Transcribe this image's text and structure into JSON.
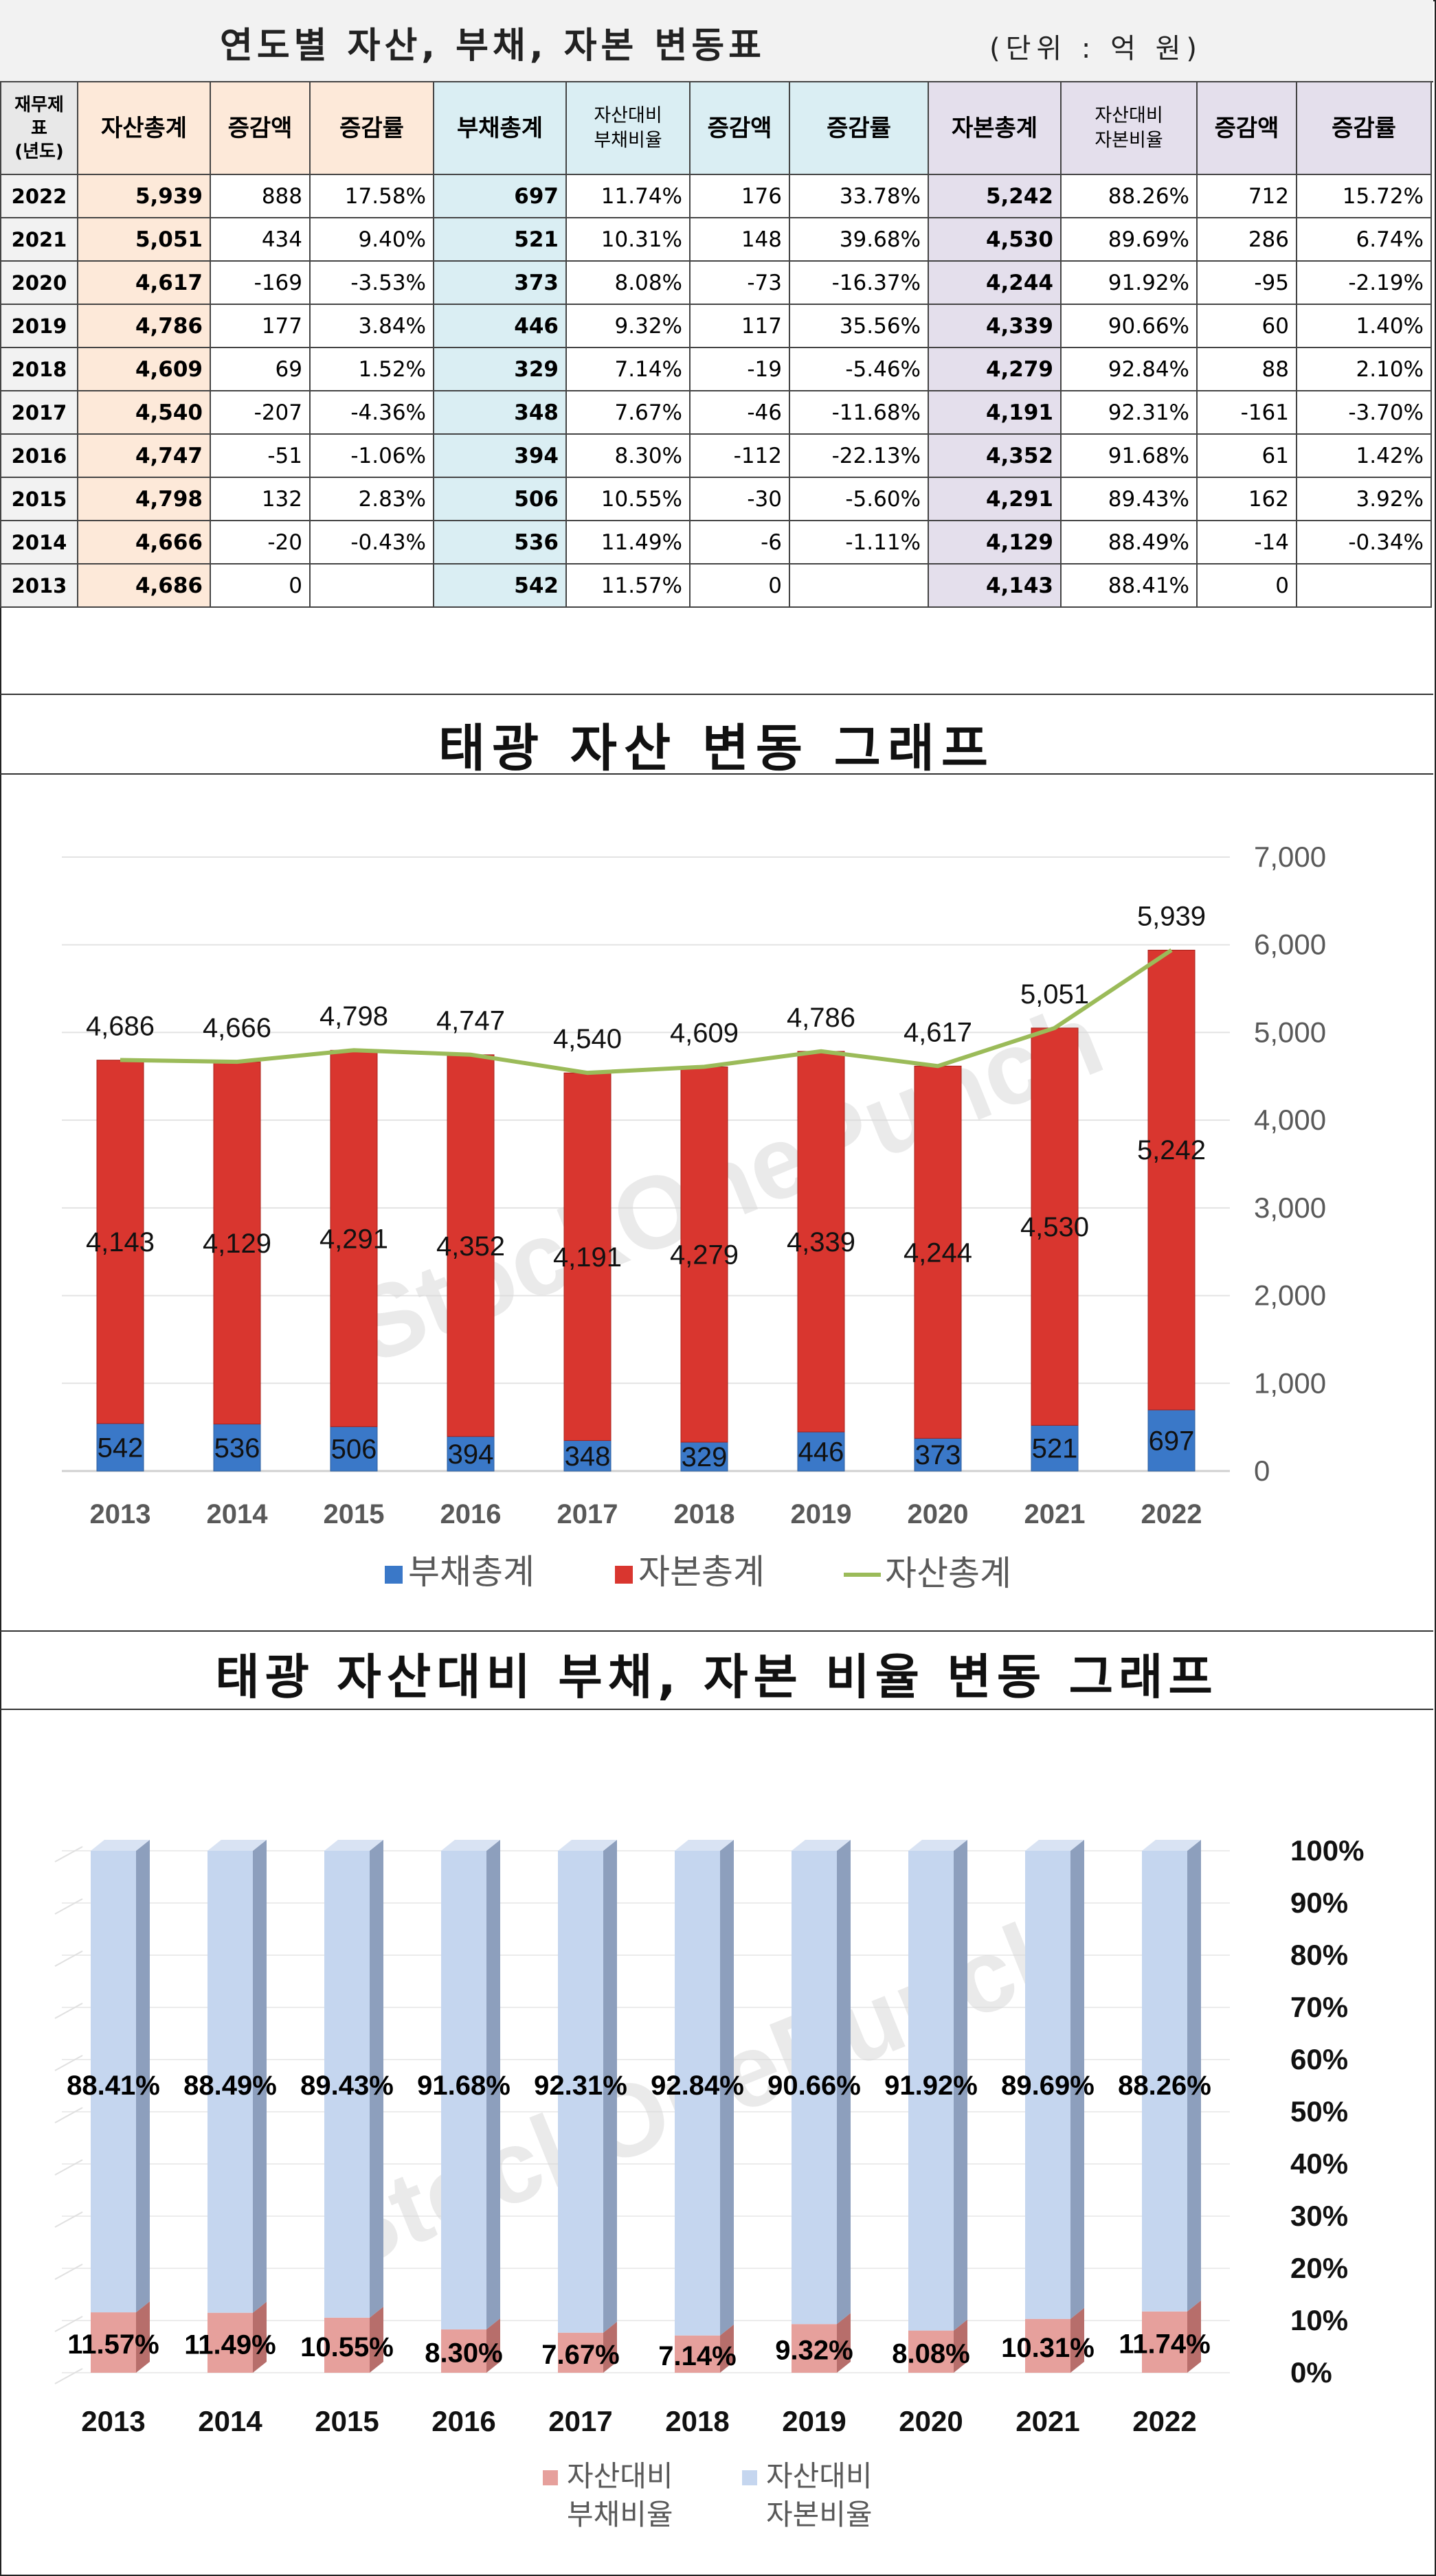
{
  "table": {
    "title": "연도별 자산, 부채, 자본 변동표",
    "unit": "(단위 : 억 원)",
    "headers": [
      "재무제표\n(년도)",
      "자산총계",
      "증감액",
      "증감률",
      "부채총계",
      "자산대비\n부채비율",
      "증감액",
      "증감률",
      "자본총계",
      "자산대비\n자본비율",
      "증감액",
      "증감률"
    ],
    "rows": [
      [
        "2022",
        "5,939",
        "888",
        "17.58%",
        "697",
        "11.74%",
        "176",
        "33.78%",
        "5,242",
        "88.26%",
        "712",
        "15.72%"
      ],
      [
        "2021",
        "5,051",
        "434",
        "9.40%",
        "521",
        "10.31%",
        "148",
        "39.68%",
        "4,530",
        "89.69%",
        "286",
        "6.74%"
      ],
      [
        "2020",
        "4,617",
        "-169",
        "-3.53%",
        "373",
        "8.08%",
        "-73",
        "-16.37%",
        "4,244",
        "91.92%",
        "-95",
        "-2.19%"
      ],
      [
        "2019",
        "4,786",
        "177",
        "3.84%",
        "446",
        "9.32%",
        "117",
        "35.56%",
        "4,339",
        "90.66%",
        "60",
        "1.40%"
      ],
      [
        "2018",
        "4,609",
        "69",
        "1.52%",
        "329",
        "7.14%",
        "-19",
        "-5.46%",
        "4,279",
        "92.84%",
        "88",
        "2.10%"
      ],
      [
        "2017",
        "4,540",
        "-207",
        "-4.36%",
        "348",
        "7.67%",
        "-46",
        "-11.68%",
        "4,191",
        "92.31%",
        "-161",
        "-3.70%"
      ],
      [
        "2016",
        "4,747",
        "-51",
        "-1.06%",
        "394",
        "8.30%",
        "-112",
        "-22.13%",
        "4,352",
        "91.68%",
        "61",
        "1.42%"
      ],
      [
        "2015",
        "4,798",
        "132",
        "2.83%",
        "506",
        "10.55%",
        "-30",
        "-5.60%",
        "4,291",
        "89.43%",
        "162",
        "3.92%"
      ],
      [
        "2014",
        "4,666",
        "-20",
        "-0.43%",
        "536",
        "11.49%",
        "-6",
        "-1.11%",
        "4,129",
        "88.49%",
        "-14",
        "-0.34%"
      ],
      [
        "2013",
        "4,686",
        "0",
        "",
        "542",
        "11.57%",
        "0",
        "",
        "4,143",
        "88.41%",
        "0",
        ""
      ]
    ]
  },
  "chart1_title": "태광 자산 변동 그래프",
  "chart2_title": "태광 자산대비 부채, 자본 비율 변동 그래프",
  "watermark": "StockOnePunch",
  "colors": {
    "debt": "#3a78c8",
    "equity": "#d9362f",
    "asset_line": "#9bbb59",
    "ratio_debt": "#e6a09c",
    "ratio_equity": "#c5d6ef",
    "negative_text": "#c00000"
  },
  "chart_data": [
    {
      "type": "bar",
      "stacked": true,
      "title": "태광 자산 변동 그래프",
      "categories": [
        "2013",
        "2014",
        "2015",
        "2016",
        "2017",
        "2018",
        "2019",
        "2020",
        "2021",
        "2022"
      ],
      "series": [
        {
          "name": "부채총계",
          "type": "bar",
          "values": [
            542,
            536,
            506,
            394,
            348,
            329,
            446,
            373,
            521,
            697
          ]
        },
        {
          "name": "자본총계",
          "type": "bar",
          "values": [
            4143,
            4129,
            4291,
            4352,
            4191,
            4279,
            4339,
            4244,
            4530,
            5242
          ]
        },
        {
          "name": "자산총계",
          "type": "line",
          "values": [
            4686,
            4666,
            4798,
            4747,
            4540,
            4609,
            4786,
            4617,
            5051,
            5939
          ]
        }
      ],
      "ylim": [
        0,
        7000
      ],
      "yticks": [
        "0",
        "1,000",
        "2,000",
        "3,000",
        "4,000",
        "5,000",
        "6,000",
        "7,000"
      ],
      "legend": "bottom",
      "grid": true
    },
    {
      "type": "bar",
      "stacked": true,
      "title": "태광 자산대비 부채, 자본 비율 변동 그래프",
      "categories": [
        "2013",
        "2014",
        "2015",
        "2016",
        "2017",
        "2018",
        "2019",
        "2020",
        "2021",
        "2022"
      ],
      "series": [
        {
          "name": "자산대비\n부채비율",
          "values": [
            11.57,
            11.49,
            10.55,
            8.3,
            7.67,
            7.14,
            9.32,
            8.08,
            10.31,
            11.74
          ],
          "labels": [
            "11.57%",
            "11.49%",
            "10.55%",
            "8.30%",
            "7.67%",
            "7.14%",
            "9.32%",
            "8.08%",
            "10.31%",
            "11.74%"
          ]
        },
        {
          "name": "자산대비\n자본비율",
          "values": [
            88.41,
            88.49,
            89.43,
            91.68,
            92.31,
            92.84,
            90.66,
            91.92,
            89.69,
            88.26
          ],
          "labels": [
            "88.41%",
            "88.49%",
            "89.43%",
            "91.68%",
            "92.31%",
            "92.84%",
            "90.66%",
            "91.92%",
            "89.69%",
            "88.26%"
          ]
        }
      ],
      "ylim": [
        0,
        100
      ],
      "yticks": [
        "0%",
        "10%",
        "20%",
        "30%",
        "40%",
        "50%",
        "60%",
        "70%",
        "80%",
        "90%",
        "100%"
      ],
      "legend": "bottom",
      "grid": true
    }
  ]
}
